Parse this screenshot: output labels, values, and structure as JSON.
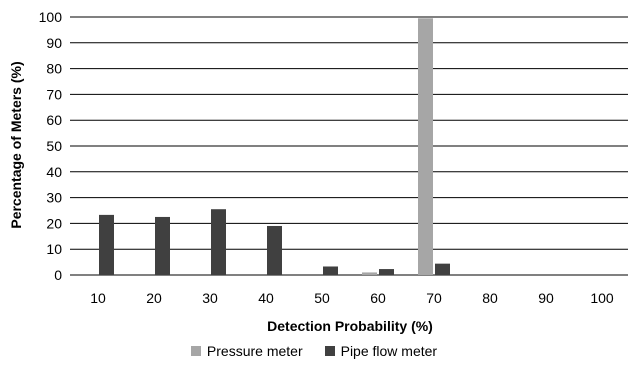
{
  "chart_data": {
    "type": "bar",
    "title": "",
    "xlabel": "Detection Probability (%)",
    "ylabel": "Percentage of Meters (%)",
    "categories": [
      "10",
      "20",
      "30",
      "40",
      "50",
      "60",
      "70",
      "80",
      "90",
      "100"
    ],
    "ylim": [
      0,
      100
    ],
    "yticks": [
      0,
      10,
      20,
      30,
      40,
      50,
      60,
      70,
      80,
      90,
      100
    ],
    "grid": true,
    "legend_position": "bottom",
    "series": [
      {
        "name": "Pressure meter",
        "color": "#a6a6a6",
        "values": [
          0,
          0,
          0,
          0,
          0,
          1,
          99.5,
          0,
          0,
          0
        ]
      },
      {
        "name": "Pipe flow meter",
        "color": "#404040",
        "values": [
          23.3,
          22.5,
          25.5,
          19,
          3.3,
          2.3,
          4.4,
          0,
          0,
          0
        ]
      }
    ]
  }
}
